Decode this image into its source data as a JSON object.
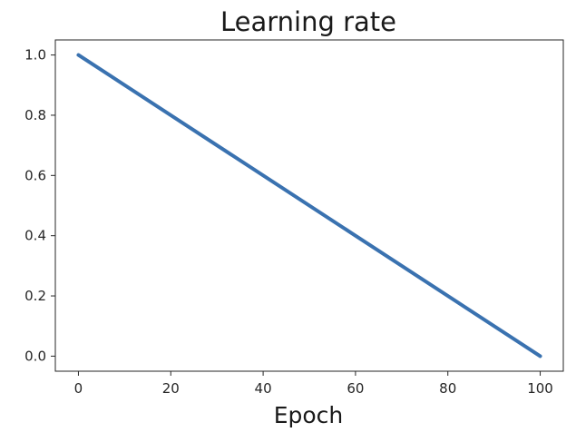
{
  "chart_data": {
    "type": "line",
    "title": "Learning rate",
    "xlabel": "Epoch",
    "ylabel": "",
    "xlim": [
      -5,
      105
    ],
    "ylim": [
      -0.05,
      1.05
    ],
    "x_ticks": [
      0,
      20,
      40,
      60,
      80,
      100
    ],
    "y_ticks": [
      0.0,
      0.2,
      0.4,
      0.6,
      0.8,
      1.0
    ],
    "x_tick_labels": [
      "0",
      "20",
      "40",
      "60",
      "80",
      "100"
    ],
    "y_tick_labels": [
      "0.0",
      "0.2",
      "0.4",
      "0.6",
      "0.8",
      "1.0"
    ],
    "grid": false,
    "legend": "none",
    "series": [
      {
        "color": "#3a72b0",
        "x": [
          0,
          100
        ],
        "y": [
          1.0,
          0.0
        ]
      }
    ]
  }
}
